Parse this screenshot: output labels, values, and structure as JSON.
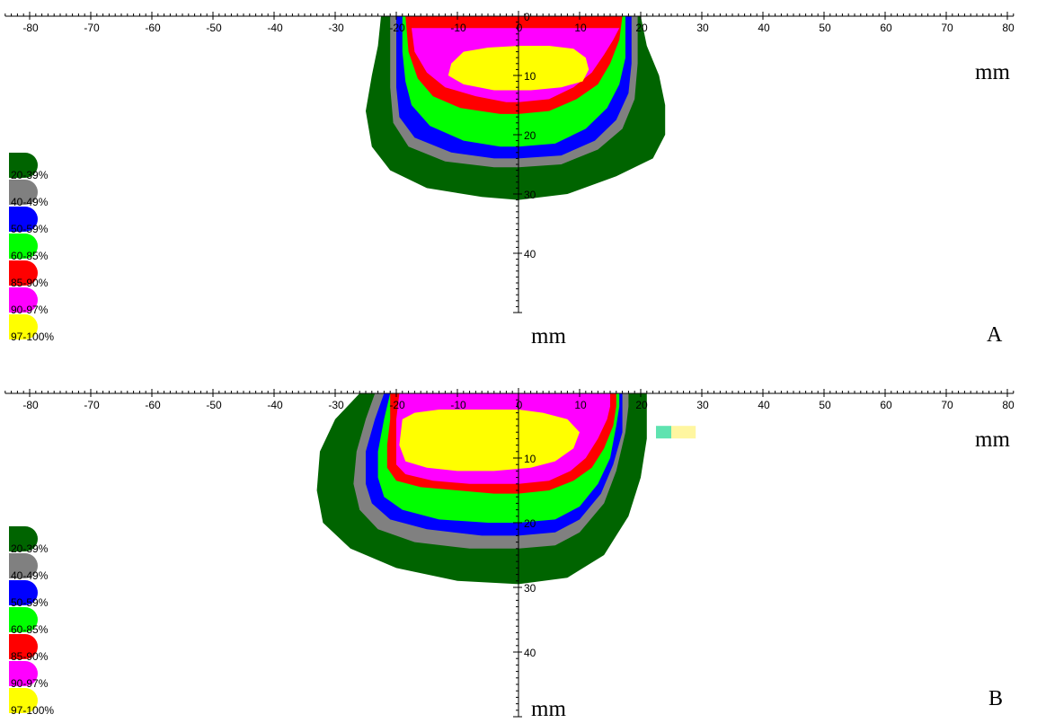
{
  "chart_data": [
    {
      "type": "isodose-contour",
      "panel_label": "A",
      "x_unit": "mm",
      "y_unit": "mm",
      "x_ticks": [
        -80,
        -70,
        -60,
        -50,
        -40,
        -30,
        -20,
        -10,
        0,
        10,
        20,
        30,
        40,
        50,
        60,
        70,
        80
      ],
      "y_ticks": [
        0,
        10,
        20,
        30,
        40
      ],
      "xlim": [
        -84,
        81
      ],
      "ylim": [
        0,
        50
      ],
      "legend": [
        {
          "label": "20-39%",
          "color": "#006400"
        },
        {
          "label": "40-49%",
          "color": "#808080"
        },
        {
          "label": "50-59%",
          "color": "#0000ff"
        },
        {
          "label": "60-85%",
          "color": "#00ff00"
        },
        {
          "label": "85-90%",
          "color": "#ff0000"
        },
        {
          "label": "90-97%",
          "color": "#ff00ff"
        },
        {
          "label": "97-100%",
          "color": "#ffff00"
        }
      ],
      "contours": [
        {
          "level": "20-39%",
          "color": "#006400",
          "points": [
            [
              -22.5,
              0
            ],
            [
              -23,
              5
            ],
            [
              -24,
              10
            ],
            [
              -25,
              16
            ],
            [
              -24,
              22
            ],
            [
              -21,
              26
            ],
            [
              -15,
              29
            ],
            [
              -6,
              30.5
            ],
            [
              0,
              31
            ],
            [
              8,
              30
            ],
            [
              16,
              27
            ],
            [
              22,
              24
            ],
            [
              24,
              20
            ],
            [
              24,
              15
            ],
            [
              23,
              10
            ],
            [
              21,
              5
            ],
            [
              20,
              0
            ]
          ]
        },
        {
          "level": "40-49%",
          "color": "#808080",
          "points": [
            [
              -21,
              0
            ],
            [
              -21,
              6
            ],
            [
              -21,
              12
            ],
            [
              -20.5,
              18
            ],
            [
              -18,
              22
            ],
            [
              -12,
              24.5
            ],
            [
              -4,
              25.5
            ],
            [
              0,
              25.5
            ],
            [
              7,
              25
            ],
            [
              13,
              22.5
            ],
            [
              17,
              19
            ],
            [
              19,
              14
            ],
            [
              19.5,
              8
            ],
            [
              19.5,
              2
            ],
            [
              19.5,
              0
            ]
          ]
        },
        {
          "level": "50-59%",
          "color": "#0000ff",
          "points": [
            [
              -20,
              0
            ],
            [
              -20,
              6
            ],
            [
              -20,
              12
            ],
            [
              -19.5,
              17
            ],
            [
              -17,
              20.5
            ],
            [
              -11,
              23
            ],
            [
              -4,
              24
            ],
            [
              0,
              24
            ],
            [
              7,
              23.5
            ],
            [
              12.5,
              21
            ],
            [
              16,
              17.5
            ],
            [
              18,
              13
            ],
            [
              18.5,
              8
            ],
            [
              18.5,
              2
            ],
            [
              18.5,
              0
            ]
          ]
        },
        {
          "level": "60-85%",
          "color": "#00ff00",
          "points": [
            [
              -19,
              0
            ],
            [
              -19,
              6
            ],
            [
              -18.5,
              11
            ],
            [
              -17.5,
              15
            ],
            [
              -14.5,
              18.5
            ],
            [
              -9,
              21
            ],
            [
              -3,
              22
            ],
            [
              0,
              22
            ],
            [
              6,
              21.5
            ],
            [
              11,
              19
            ],
            [
              14.5,
              15.5
            ],
            [
              16.5,
              11.5
            ],
            [
              17.5,
              7
            ],
            [
              17.5,
              2
            ],
            [
              17.5,
              0
            ]
          ]
        },
        {
          "level": "85-90%",
          "color": "#ff0000",
          "points": [
            [
              -18.5,
              0
            ],
            [
              -18,
              6
            ],
            [
              -16.5,
              10.5
            ],
            [
              -14,
              13.5
            ],
            [
              -9.5,
              15.5
            ],
            [
              -3,
              16.5
            ],
            [
              0,
              16.5
            ],
            [
              5,
              16
            ],
            [
              9.5,
              14
            ],
            [
              13,
              11.5
            ],
            [
              15,
              8
            ],
            [
              16.5,
              4
            ],
            [
              17,
              0
            ]
          ]
        },
        {
          "level": "90-97%",
          "color": "#ff00ff",
          "points": [
            [
              -17.5,
              2
            ],
            [
              -17,
              6
            ],
            [
              -15,
              9.5
            ],
            [
              -12,
              12
            ],
            [
              -7,
              13.5
            ],
            [
              -2,
              14.5
            ],
            [
              0,
              14.5
            ],
            [
              5,
              14
            ],
            [
              9,
              12
            ],
            [
              12,
              9.5
            ],
            [
              14,
              6.5
            ],
            [
              15.5,
              4
            ],
            [
              16.5,
              2
            ]
          ]
        },
        {
          "level": "97-100%",
          "color": "#ffff00",
          "points": [
            [
              -11,
              8
            ],
            [
              -9,
              6
            ],
            [
              -5,
              5.3
            ],
            [
              0,
              5
            ],
            [
              5,
              5
            ],
            [
              9,
              5.5
            ],
            [
              11,
              7
            ],
            [
              11.5,
              9
            ],
            [
              10.5,
              11
            ],
            [
              7,
              12
            ],
            [
              2,
              12.5
            ],
            [
              -4,
              12.5
            ],
            [
              -9,
              11.5
            ],
            [
              -11.5,
              10
            ]
          ]
        }
      ]
    },
    {
      "type": "isodose-contour",
      "panel_label": "B",
      "x_unit": "mm",
      "y_unit": "mm",
      "x_ticks": [
        -80,
        -70,
        -60,
        -50,
        -40,
        -30,
        -20,
        -10,
        0,
        10,
        20,
        30,
        40,
        50,
        60,
        70,
        80
      ],
      "y_ticks": [
        10,
        20,
        30,
        40
      ],
      "xlim": [
        -84,
        81
      ],
      "ylim": [
        0,
        50
      ],
      "legend": [
        {
          "label": "20-39%",
          "color": "#006400"
        },
        {
          "label": "40-49%",
          "color": "#808080"
        },
        {
          "label": "50-59%",
          "color": "#0000ff"
        },
        {
          "label": "60-85%",
          "color": "#00ff00"
        },
        {
          "label": "85-90%",
          "color": "#ff0000"
        },
        {
          "label": "90-97%",
          "color": "#ff00ff"
        },
        {
          "label": "97-100%",
          "color": "#ffff00"
        }
      ],
      "contours": [
        {
          "level": "20-39%",
          "color": "#006400",
          "points": [
            [
              -26,
              0
            ],
            [
              -30,
              4
            ],
            [
              -32.5,
              9
            ],
            [
              -33,
              15
            ],
            [
              -32,
              20
            ],
            [
              -27.5,
              24
            ],
            [
              -20,
              27
            ],
            [
              -10,
              29
            ],
            [
              0,
              29.5
            ],
            [
              8,
              28.5
            ],
            [
              14,
              25
            ],
            [
              18,
              19
            ],
            [
              20,
              13
            ],
            [
              21,
              7
            ],
            [
              21,
              3
            ],
            [
              21,
              0
            ]
          ]
        },
        {
          "level": "40-49%",
          "color": "#808080",
          "points": [
            [
              -23.5,
              0
            ],
            [
              -25,
              4
            ],
            [
              -26.5,
              9
            ],
            [
              -27,
              14
            ],
            [
              -26,
              18
            ],
            [
              -23,
              21
            ],
            [
              -17,
              23
            ],
            [
              -8,
              24
            ],
            [
              0,
              24
            ],
            [
              6,
              23.5
            ],
            [
              10,
              21.5
            ],
            [
              14,
              17
            ],
            [
              16,
              12
            ],
            [
              17.5,
              6
            ],
            [
              18,
              2
            ],
            [
              18,
              0
            ]
          ]
        },
        {
          "level": "50-59%",
          "color": "#0000ff",
          "points": [
            [
              -22,
              0
            ],
            [
              -23.5,
              4
            ],
            [
              -25,
              9
            ],
            [
              -25,
              14
            ],
            [
              -24,
              17
            ],
            [
              -21,
              19.5
            ],
            [
              -15,
              21
            ],
            [
              -6,
              22
            ],
            [
              0,
              22
            ],
            [
              6,
              21.5
            ],
            [
              10,
              19.5
            ],
            [
              13.5,
              15.5
            ],
            [
              15.5,
              11
            ],
            [
              17,
              6
            ],
            [
              17,
              2
            ],
            [
              17,
              0
            ]
          ]
        },
        {
          "level": "60-85%",
          "color": "#00ff00",
          "points": [
            [
              -21,
              0
            ],
            [
              -22,
              4
            ],
            [
              -23,
              9
            ],
            [
              -23,
              13
            ],
            [
              -22,
              16
            ],
            [
              -19,
              18
            ],
            [
              -13,
              19.5
            ],
            [
              -5,
              20
            ],
            [
              0,
              20
            ],
            [
              6,
              19.5
            ],
            [
              10,
              17.5
            ],
            [
              13,
              14
            ],
            [
              15,
              10
            ],
            [
              16,
              5
            ],
            [
              16.5,
              2
            ],
            [
              16.5,
              0
            ]
          ]
        },
        {
          "level": "85-90%",
          "color": "#ff0000",
          "points": [
            [
              -21,
              0
            ],
            [
              -21,
              4
            ],
            [
              -21.5,
              8
            ],
            [
              -21.5,
              11.5
            ],
            [
              -20,
              13.5
            ],
            [
              -16,
              14.5
            ],
            [
              -10,
              15
            ],
            [
              -4,
              15.5
            ],
            [
              0,
              15.5
            ],
            [
              5,
              15
            ],
            [
              9,
              13.5
            ],
            [
              12,
              11.5
            ],
            [
              14,
              8.5
            ],
            [
              15.5,
              5
            ],
            [
              16,
              2
            ],
            [
              16,
              0
            ]
          ]
        },
        {
          "level": "90-97%",
          "color": "#ff00ff",
          "points": [
            [
              -19.5,
              0
            ],
            [
              -20,
              4
            ],
            [
              -20,
              8
            ],
            [
              -20,
              11
            ],
            [
              -18.5,
              12.5
            ],
            [
              -14,
              13.5
            ],
            [
              -8,
              14
            ],
            [
              -3,
              14
            ],
            [
              0,
              14
            ],
            [
              5,
              13.5
            ],
            [
              8.5,
              12
            ],
            [
              11,
              10
            ],
            [
              13,
              7
            ],
            [
              14.5,
              4
            ],
            [
              15,
              2
            ],
            [
              15,
              0
            ]
          ]
        },
        {
          "level": "97-100%",
          "color": "#ffff00",
          "points": [
            [
              -19,
              4
            ],
            [
              -17,
              3
            ],
            [
              -13,
              2.5
            ],
            [
              -8,
              2.5
            ],
            [
              -3,
              2.5
            ],
            [
              0,
              2.5
            ],
            [
              4,
              3
            ],
            [
              8,
              4
            ],
            [
              10,
              6
            ],
            [
              9,
              8.5
            ],
            [
              6,
              10.5
            ],
            [
              2,
              11.5
            ],
            [
              -4,
              12
            ],
            [
              -10,
              12
            ],
            [
              -15,
              11.5
            ],
            [
              -18.5,
              10.5
            ],
            [
              -19.5,
              8
            ]
          ]
        }
      ],
      "artifact_swatches": [
        {
          "x": 22.5,
          "y": 6,
          "width_mm": 2.5,
          "color": "#5fe3b0"
        },
        {
          "x": 25,
          "y": 6,
          "width_mm": 4,
          "color": "#fff6a0"
        }
      ]
    }
  ]
}
